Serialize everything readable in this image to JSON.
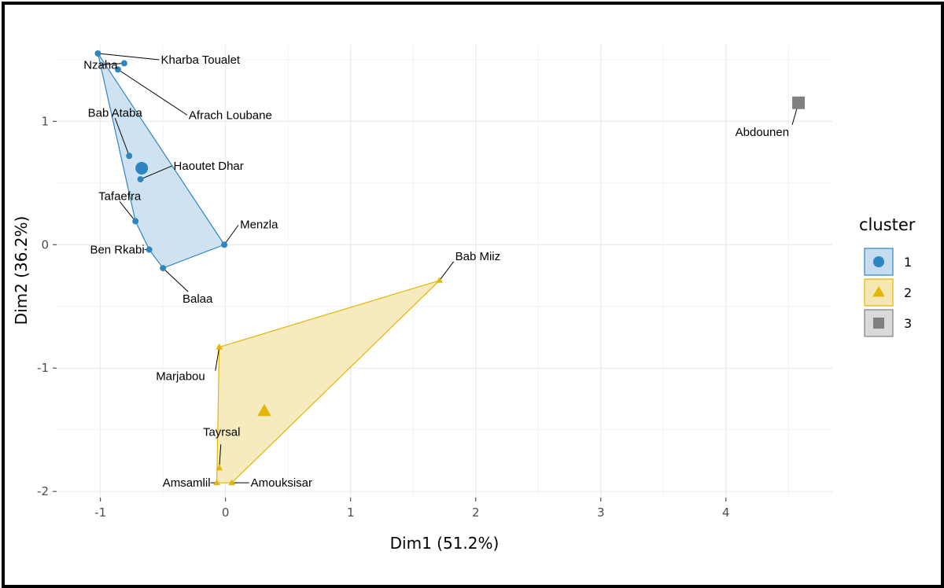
{
  "chart_data": {
    "type": "scatter",
    "xlabel": "Dim1 (51.2%)",
    "ylabel": "Dim2 (36.2%)",
    "xlim": [
      -1.35,
      4.85
    ],
    "ylim": [
      -2.05,
      1.62
    ],
    "x_ticks": [
      -1,
      0,
      1,
      2,
      3,
      4
    ],
    "y_ticks": [
      -2,
      -1,
      0,
      1
    ],
    "grid": true,
    "legend": {
      "title": "cluster",
      "position": "right",
      "items": [
        {
          "label": "1",
          "shape": "circle",
          "color": "#2E86C1",
          "fill": "#C7DDEF"
        },
        {
          "label": "2",
          "shape": "triangle",
          "color": "#E3B505",
          "fill": "#F4E7B3"
        },
        {
          "label": "3",
          "shape": "square",
          "color": "#808080",
          "fill": "#D9D9D9"
        }
      ]
    },
    "clusters": [
      {
        "id": "1",
        "color": "#2E86C1",
        "fill": "#C7DDEF",
        "shape": "circle",
        "hull": [
          "Kharba Toualet",
          "Menzla",
          "Balaa",
          "Ben Rkabi",
          "Tafaefra",
          "Kharba Toualet"
        ],
        "centroid": [
          -0.67,
          0.62
        ],
        "points": [
          {
            "label": "Kharba Toualet",
            "x": -1.02,
            "y": 1.55
          },
          {
            "label": "Nzaha",
            "x": -0.81,
            "y": 1.47
          },
          {
            "label": "Afrach Loubane",
            "x": -0.86,
            "y": 1.42
          },
          {
            "label": "Bab Ataba",
            "x": -0.77,
            "y": 0.72
          },
          {
            "label": "Haoutet Dhar",
            "x": -0.68,
            "y": 0.53
          },
          {
            "label": "Tafaefra",
            "x": -0.72,
            "y": 0.19
          },
          {
            "label": "Menzla",
            "x": -0.01,
            "y": 0.0
          },
          {
            "label": "Ben Rkabi",
            "x": -0.61,
            "y": -0.04
          },
          {
            "label": "Balaa",
            "x": -0.5,
            "y": -0.19
          }
        ]
      },
      {
        "id": "2",
        "color": "#E3B505",
        "fill": "#F4E7B3",
        "shape": "triangle",
        "hull": [
          "Bab Miiz",
          "Marjabou",
          "Amsamlil",
          "Amouksisar",
          "Bab Miiz"
        ],
        "centroid": [
          0.31,
          -1.35
        ],
        "points": [
          {
            "label": "Bab Miiz",
            "x": 1.71,
            "y": -0.29
          },
          {
            "label": "Marjabou",
            "x": -0.05,
            "y": -0.83
          },
          {
            "label": "Tayrsal",
            "x": -0.05,
            "y": -1.81
          },
          {
            "label": "Amsamlil",
            "x": -0.07,
            "y": -1.93
          },
          {
            "label": "Amouksisar",
            "x": 0.05,
            "y": -1.93
          }
        ]
      },
      {
        "id": "3",
        "color": "#808080",
        "fill": "#D9D9D9",
        "shape": "square",
        "hull": [],
        "centroid": [
          4.58,
          1.15
        ],
        "points": [
          {
            "label": "Abdounen",
            "x": 4.58,
            "y": 1.15
          }
        ]
      }
    ]
  }
}
